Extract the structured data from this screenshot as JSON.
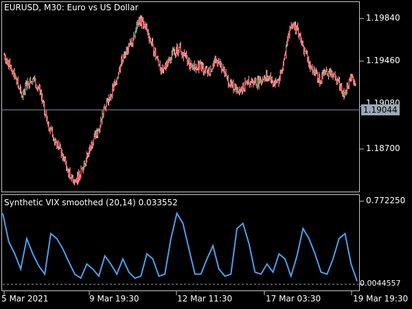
{
  "chart_title": "EURUSD, M30:  Euro vs US Dollar",
  "indicator_title": "Synthetic VIX smoothed (20,14) 0.033552",
  "price_axis": [
    "1.19840",
    "1.19460",
    "1.19080",
    "1.18700"
  ],
  "current_price": "1.19044",
  "indicator_axis": {
    "top": "0.772250",
    "bottom": "0.0044557"
  },
  "time_axis": [
    "5 Mar 2021",
    "9 Mar 19:30",
    "12 Mar 11:30",
    "17 Mar 03:30",
    "19 Mar 19:30"
  ],
  "colors": {
    "bull": "#00cc66",
    "bear": "#ff6060",
    "wick": "#ffb0b0",
    "indicator": "#4aa3f0",
    "grid": "#c8c8c8"
  },
  "chart_data": {
    "type": "line",
    "series": [
      {
        "values": [
          1.194,
          1.1925,
          1.1905,
          1.188,
          1.19,
          1.1905,
          1.189,
          1.1855,
          1.183,
          1.1815,
          1.1795,
          1.177,
          1.176,
          1.177,
          1.179,
          1.1815,
          1.183,
          1.186,
          1.188,
          1.19,
          1.193,
          1.1945,
          1.1965,
          1.199,
          1.1985,
          1.196,
          1.1935,
          1.1915,
          1.193,
          1.1945,
          1.195,
          1.1935,
          1.192,
          1.1925,
          1.192,
          1.1915,
          1.193,
          1.1925,
          1.1905,
          1.1895,
          1.189,
          1.1895,
          1.1905,
          1.19,
          1.1905,
          1.191,
          1.19,
          1.1905,
          1.1945,
          1.1985,
          1.1975,
          1.195,
          1.193,
          1.1915,
          1.1905,
          1.1915,
          1.191,
          1.1905,
          1.188,
          1.1905,
          1.1904
        ]
      },
      {
        "values": [
          0.7,
          0.42,
          0.3,
          0.15,
          0.45,
          0.3,
          0.18,
          0.1,
          0.5,
          0.45,
          0.35,
          0.22,
          0.1,
          0.06,
          0.2,
          0.15,
          0.08,
          0.28,
          0.2,
          0.1,
          0.25,
          0.12,
          0.06,
          0.08,
          0.3,
          0.25,
          0.08,
          0.1,
          0.45,
          0.7,
          0.6,
          0.35,
          0.1,
          0.1,
          0.25,
          0.38,
          0.15,
          0.08,
          0.1,
          0.55,
          0.6,
          0.4,
          0.12,
          0.1,
          0.2,
          0.12,
          0.3,
          0.25,
          0.08,
          0.28,
          0.55,
          0.45,
          0.3,
          0.12,
          0.1,
          0.25,
          0.45,
          0.5,
          0.2,
          0.03
        ]
      }
    ]
  }
}
